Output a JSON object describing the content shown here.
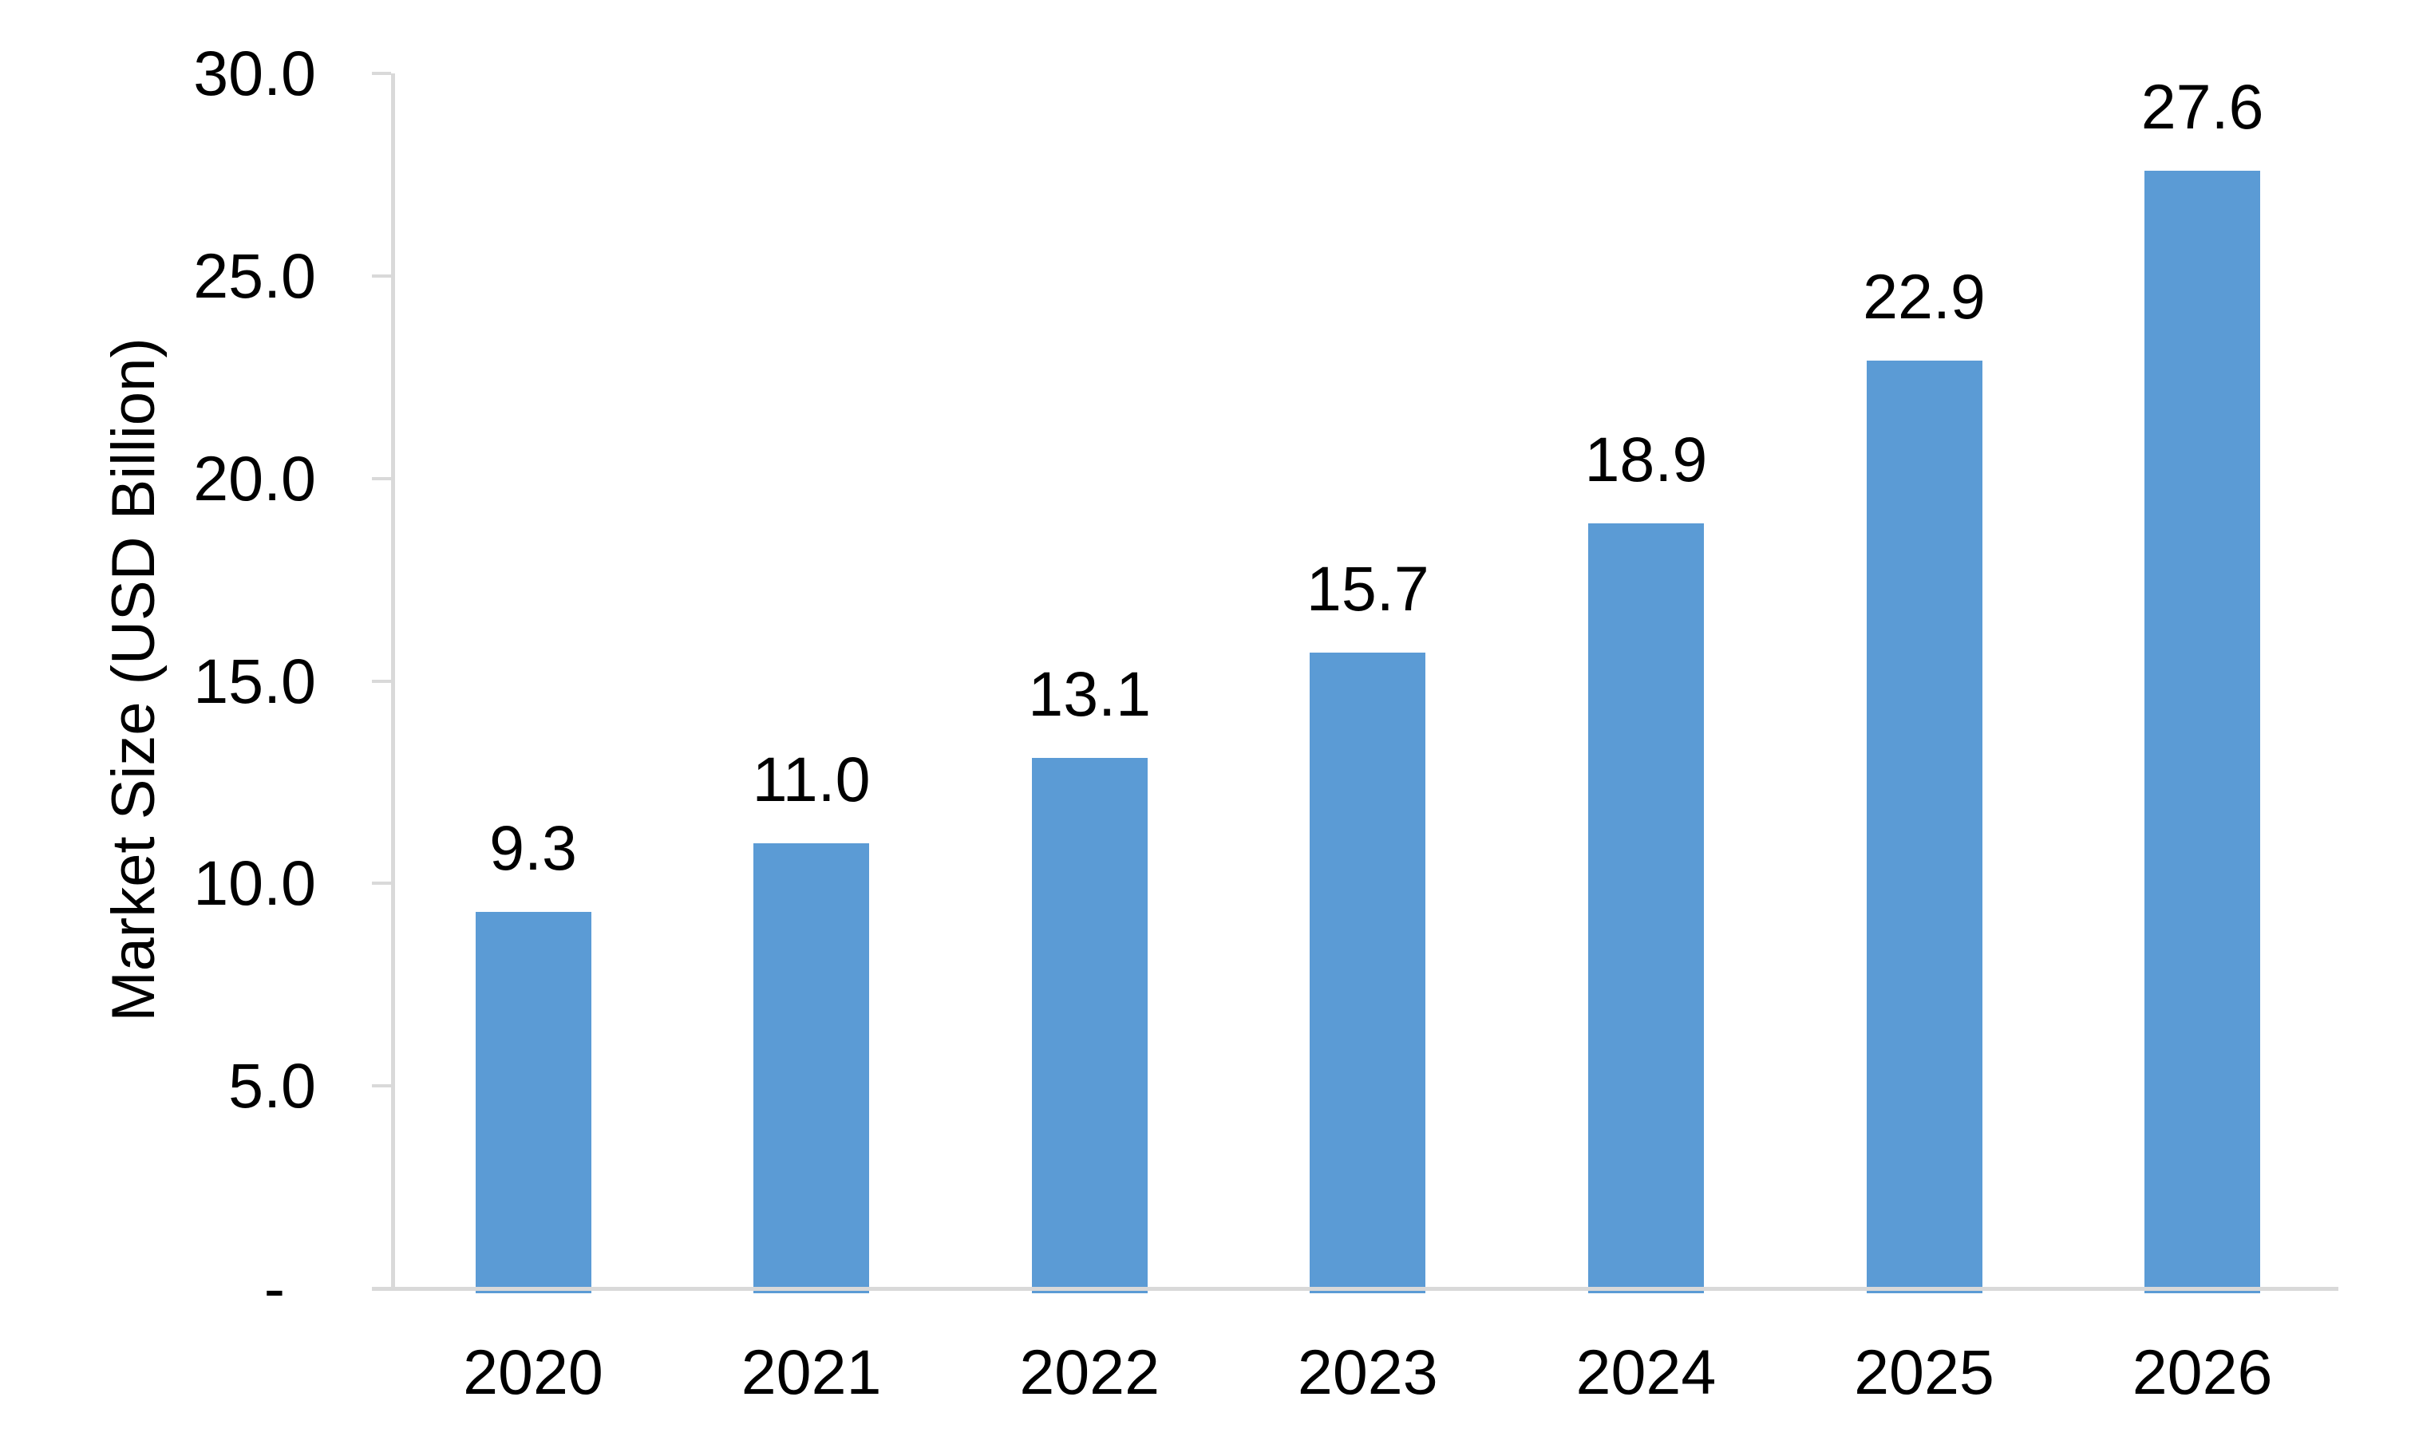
{
  "chart_data": {
    "type": "bar",
    "title": "",
    "xlabel": "",
    "ylabel": "Market Size (USD Billion)",
    "categories": [
      "2020",
      "2021",
      "2022",
      "2023",
      "2024",
      "2025",
      "2026"
    ],
    "series": [
      {
        "name": "Market Size",
        "values": [
          9.3,
          11.0,
          13.1,
          15.7,
          18.9,
          22.9,
          27.6
        ],
        "value_labels": [
          "9.3",
          "11.0",
          "13.1",
          "15.7",
          "18.9",
          "22.9",
          "27.6"
        ]
      }
    ],
    "ylim": [
      0,
      30
    ],
    "y_ticks": [
      {
        "value": 30,
        "label": "30.0"
      },
      {
        "value": 25,
        "label": "25.0"
      },
      {
        "value": 20,
        "label": "20.0"
      },
      {
        "value": 15,
        "label": "15.0"
      },
      {
        "value": 10,
        "label": "10.0"
      },
      {
        "value": 5,
        "label": "5.0"
      },
      {
        "value": 0,
        "label": "-"
      }
    ],
    "grid": "off",
    "legend_position": "none",
    "colors": {
      "bar": "#5B9BD5",
      "axis_line": "#D9D9D9",
      "text": "#000000",
      "background": "#FFFFFF"
    }
  }
}
